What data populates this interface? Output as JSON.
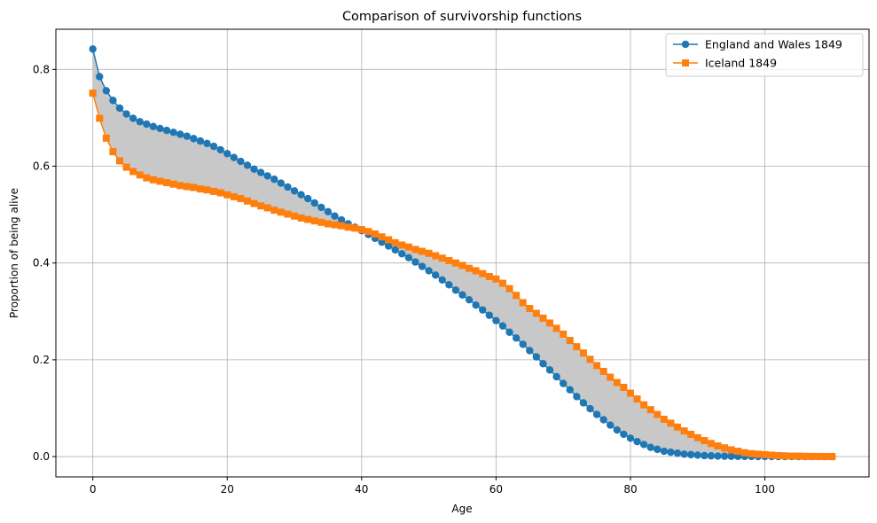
{
  "chart_data": {
    "type": "line",
    "title": "Comparison of survivorship functions",
    "xlabel": "Age",
    "ylabel": "Proportion of being alive",
    "xlim": [
      -5.5,
      115.5
    ],
    "ylim": [
      -0.042,
      0.883
    ],
    "xticks": [
      0,
      20,
      40,
      60,
      80,
      100
    ],
    "yticks": [
      0.0,
      0.2,
      0.4,
      0.6,
      0.8
    ],
    "xtick_labels": [
      "0",
      "20",
      "40",
      "60",
      "80",
      "100"
    ],
    "ytick_labels": [
      "0.0",
      "0.2",
      "0.4",
      "0.6",
      "0.8"
    ],
    "grid": true,
    "legend_position": "top-right",
    "fill_between": {
      "color": "#c8c8c8"
    },
    "series": [
      {
        "name": "England and Wales 1849",
        "marker": "circle",
        "color": "#1f77b4",
        "x": [
          0,
          1,
          2,
          3,
          4,
          5,
          6,
          7,
          8,
          9,
          10,
          11,
          12,
          13,
          14,
          15,
          16,
          17,
          18,
          19,
          20,
          21,
          22,
          23,
          24,
          25,
          26,
          27,
          28,
          29,
          30,
          31,
          32,
          33,
          34,
          35,
          36,
          37,
          38,
          39,
          40,
          41,
          42,
          43,
          44,
          45,
          46,
          47,
          48,
          49,
          50,
          51,
          52,
          53,
          54,
          55,
          56,
          57,
          58,
          59,
          60,
          61,
          62,
          63,
          64,
          65,
          66,
          67,
          68,
          69,
          70,
          71,
          72,
          73,
          74,
          75,
          76,
          77,
          78,
          79,
          80,
          81,
          82,
          83,
          84,
          85,
          86,
          87,
          88,
          89,
          90,
          91,
          92,
          93,
          94,
          95,
          96,
          97,
          98,
          99,
          100,
          101,
          102,
          103,
          104,
          105,
          106,
          107,
          108,
          109,
          110
        ],
        "y": [
          0.842,
          0.785,
          0.756,
          0.736,
          0.72,
          0.708,
          0.699,
          0.692,
          0.687,
          0.682,
          0.678,
          0.674,
          0.67,
          0.666,
          0.662,
          0.657,
          0.652,
          0.647,
          0.641,
          0.634,
          0.626,
          0.618,
          0.61,
          0.602,
          0.594,
          0.587,
          0.58,
          0.573,
          0.565,
          0.557,
          0.549,
          0.541,
          0.533,
          0.524,
          0.515,
          0.506,
          0.497,
          0.489,
          0.481,
          0.474,
          0.467,
          0.459,
          0.451,
          0.443,
          0.435,
          0.427,
          0.419,
          0.411,
          0.402,
          0.393,
          0.384,
          0.375,
          0.365,
          0.355,
          0.344,
          0.334,
          0.324,
          0.313,
          0.303,
          0.292,
          0.281,
          0.27,
          0.257,
          0.245,
          0.232,
          0.219,
          0.206,
          0.192,
          0.179,
          0.165,
          0.151,
          0.138,
          0.124,
          0.111,
          0.099,
          0.087,
          0.076,
          0.065,
          0.055,
          0.046,
          0.038,
          0.031,
          0.025,
          0.019,
          0.015,
          0.011,
          0.009,
          0.007,
          0.005,
          0.004,
          0.003,
          0.002,
          0.0015,
          0.001,
          0.0008,
          0.0006,
          0.0004,
          0.0003,
          0.0002,
          0.0001,
          0.0001,
          0.0001,
          0.0,
          0.0,
          0.0,
          0.0,
          0.0,
          0.0,
          0.0,
          0.0,
          0.0
        ]
      },
      {
        "name": "Iceland 1849",
        "marker": "square",
        "color": "#ff7f0e",
        "x": [
          0,
          1,
          2,
          3,
          4,
          5,
          6,
          7,
          8,
          9,
          10,
          11,
          12,
          13,
          14,
          15,
          16,
          17,
          18,
          19,
          20,
          21,
          22,
          23,
          24,
          25,
          26,
          27,
          28,
          29,
          30,
          31,
          32,
          33,
          34,
          35,
          36,
          37,
          38,
          39,
          40,
          41,
          42,
          43,
          44,
          45,
          46,
          47,
          48,
          49,
          50,
          51,
          52,
          53,
          54,
          55,
          56,
          57,
          58,
          59,
          60,
          61,
          62,
          63,
          64,
          65,
          66,
          67,
          68,
          69,
          70,
          71,
          72,
          73,
          74,
          75,
          76,
          77,
          78,
          79,
          80,
          81,
          82,
          83,
          84,
          85,
          86,
          87,
          88,
          89,
          90,
          91,
          92,
          93,
          94,
          95,
          96,
          97,
          98,
          99,
          100,
          101,
          102,
          103,
          104,
          105,
          106,
          107,
          108,
          109,
          110
        ],
        "y": [
          0.751,
          0.699,
          0.658,
          0.63,
          0.611,
          0.598,
          0.589,
          0.582,
          0.576,
          0.572,
          0.569,
          0.566,
          0.563,
          0.56,
          0.558,
          0.556,
          0.553,
          0.551,
          0.548,
          0.545,
          0.541,
          0.537,
          0.533,
          0.528,
          0.523,
          0.518,
          0.514,
          0.509,
          0.505,
          0.501,
          0.497,
          0.493,
          0.49,
          0.487,
          0.484,
          0.481,
          0.479,
          0.477,
          0.474,
          0.472,
          0.469,
          0.465,
          0.46,
          0.454,
          0.448,
          0.442,
          0.437,
          0.433,
          0.428,
          0.424,
          0.42,
          0.415,
          0.41,
          0.405,
          0.4,
          0.395,
          0.389,
          0.384,
          0.378,
          0.372,
          0.367,
          0.358,
          0.347,
          0.333,
          0.318,
          0.306,
          0.296,
          0.286,
          0.276,
          0.265,
          0.253,
          0.24,
          0.227,
          0.214,
          0.201,
          0.188,
          0.176,
          0.164,
          0.153,
          0.143,
          0.131,
          0.119,
          0.107,
          0.097,
          0.087,
          0.077,
          0.069,
          0.061,
          0.053,
          0.046,
          0.039,
          0.033,
          0.027,
          0.022,
          0.018,
          0.014,
          0.011,
          0.008,
          0.006,
          0.005,
          0.004,
          0.003,
          0.002,
          0.0015,
          0.001,
          0.001,
          0.0005,
          0.0003,
          0.0002,
          0.0001,
          0.0
        ]
      }
    ]
  }
}
